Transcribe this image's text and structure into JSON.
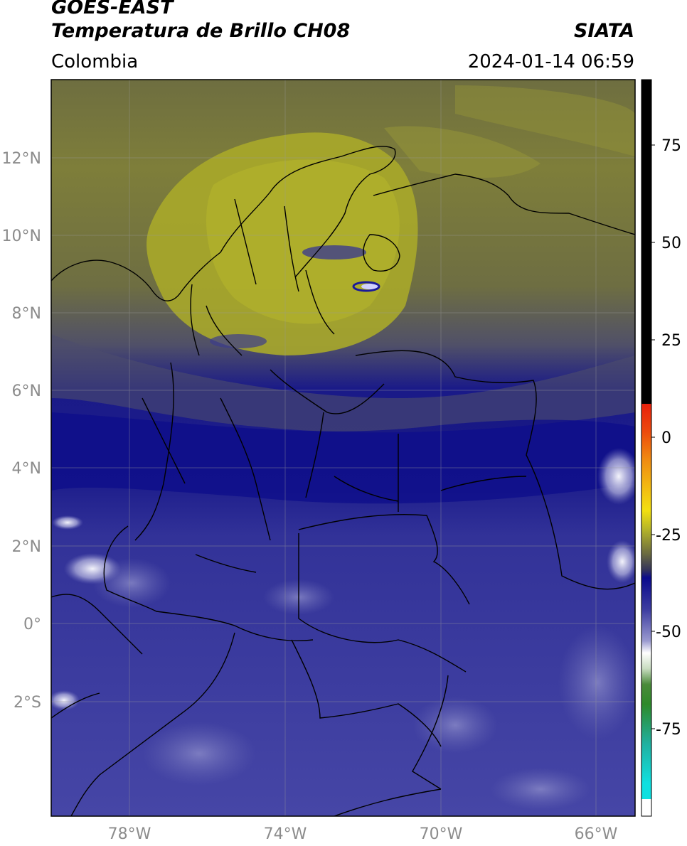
{
  "header": {
    "title_line1": "GOES-EAST",
    "title_line2": "Temperatura de Brillo CH08",
    "brand": "SIATA",
    "region": "Colombia",
    "timestamp": "2024-01-14 06:59"
  },
  "map": {
    "lat_ticks": [
      "12°N",
      "10°N",
      "8°N",
      "6°N",
      "4°N",
      "2°N",
      "0°",
      "2°S"
    ],
    "lon_ticks": [
      "78°W",
      "74°W",
      "70°W",
      "66°W"
    ]
  },
  "colorbar": {
    "ticks": [
      "75",
      "50",
      "25",
      "0",
      "-25",
      "-50",
      "-75"
    ],
    "colors": {
      "warm_high": "#000000",
      "red": "#e8200c",
      "orange": "#f08a10",
      "yellow": "#f2e010",
      "olive": "#a5a526",
      "dark_olive": "#5c5c38",
      "navy": "#0a0a8c",
      "blue_purple": "#3c3ca0",
      "lavender": "#9a9ad0",
      "white": "#ffffff",
      "green": "#2e8a2a",
      "teal": "#20b0a0",
      "cyan": "#10e0e0"
    }
  }
}
